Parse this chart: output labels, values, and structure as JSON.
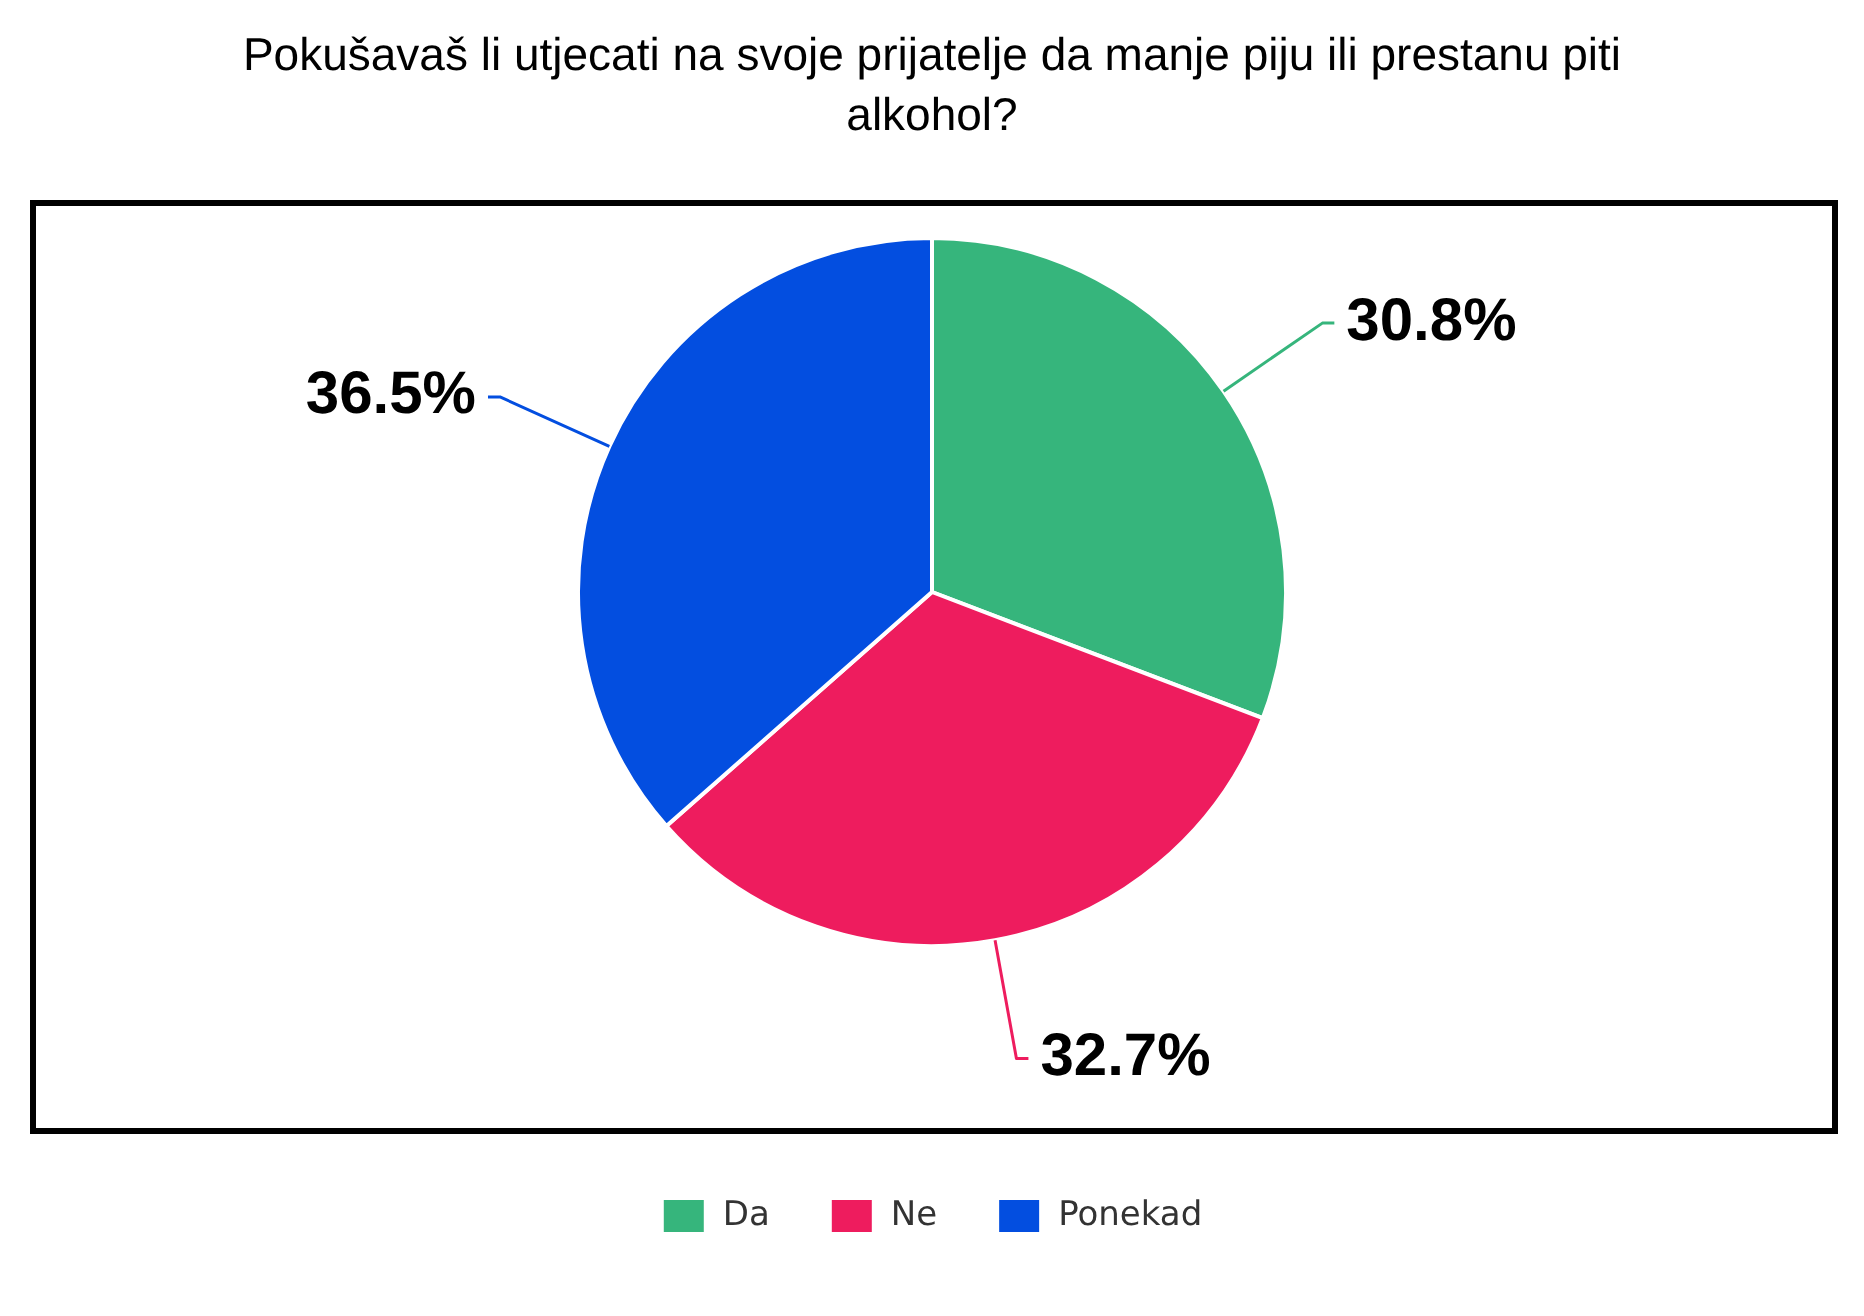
{
  "chart_data": {
    "type": "pie",
    "title": "Pokušavaš li utjecati na svoje prijatelje da manje piju ili prestanu piti alkohol?",
    "categories": [
      "Da",
      "Ne",
      "Ponekad"
    ],
    "values": [
      30.8,
      32.7,
      36.5
    ],
    "colors": [
      "#36b57c",
      "#ee1c5e",
      "#034ee0"
    ],
    "value_labels": [
      "30.8%",
      "32.7%",
      "36.5%"
    ],
    "legend": "bottom"
  }
}
